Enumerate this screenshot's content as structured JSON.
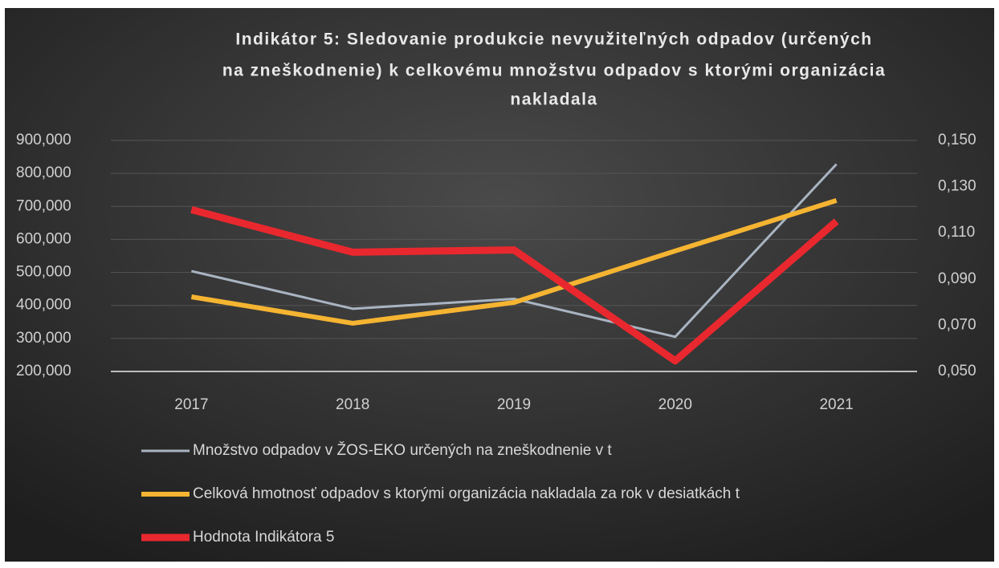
{
  "chart_data": {
    "type": "line",
    "title": [
      "Indikátor 5: Sledovanie produkcie nevyužiteľných odpadov (určených",
      "na zneškodnenie) k celkovému množstvu odpadov s ktorými organizácia",
      "nakladala"
    ],
    "categories": [
      "2017",
      "2018",
      "2019",
      "2020",
      "2021"
    ],
    "series": [
      {
        "name": "Množstvo odpadov v ŽOS-EKO určených na zneškodnenie v t",
        "color": "#a9b4c2",
        "width": 3,
        "values": [
          504000,
          390000,
          420000,
          305000,
          828000
        ]
      },
      {
        "name": "Celková hmotnosť odpadov s ktorými organizácia nakladala za rok v desiatkách t",
        "color": "#f5b431",
        "width": 6,
        "values": [
          426000,
          346000,
          409000,
          565000,
          718000
        ]
      },
      {
        "name": "Hodnota Indikátora 5",
        "color": "#e8282e",
        "width": 9,
        "axis": "y2",
        "values": [
          0.12,
          0.1016,
          0.1026,
          0.0546,
          0.115
        ]
      }
    ],
    "ylim": [
      200000,
      900000
    ],
    "yticks": [
      {
        "value": 200000,
        "label": "200,000"
      },
      {
        "value": 300000,
        "label": "300,000"
      },
      {
        "value": 400000,
        "label": "400,000"
      },
      {
        "value": 500000,
        "label": "500,000"
      },
      {
        "value": 600000,
        "label": "600,000"
      },
      {
        "value": 700000,
        "label": "700,000"
      },
      {
        "value": 800000,
        "label": "800,000"
      },
      {
        "value": 900000,
        "label": "900,000"
      }
    ],
    "y2lim": [
      0.05,
      0.15
    ],
    "y2ticks": [
      {
        "value": 0.05,
        "label": "0,050"
      },
      {
        "value": 0.07,
        "label": "0,070"
      },
      {
        "value": 0.09,
        "label": "0,090"
      },
      {
        "value": 0.11,
        "label": "0,110"
      },
      {
        "value": 0.13,
        "label": "0,130"
      },
      {
        "value": 0.15,
        "label": "0,150"
      }
    ],
    "grid": true
  }
}
